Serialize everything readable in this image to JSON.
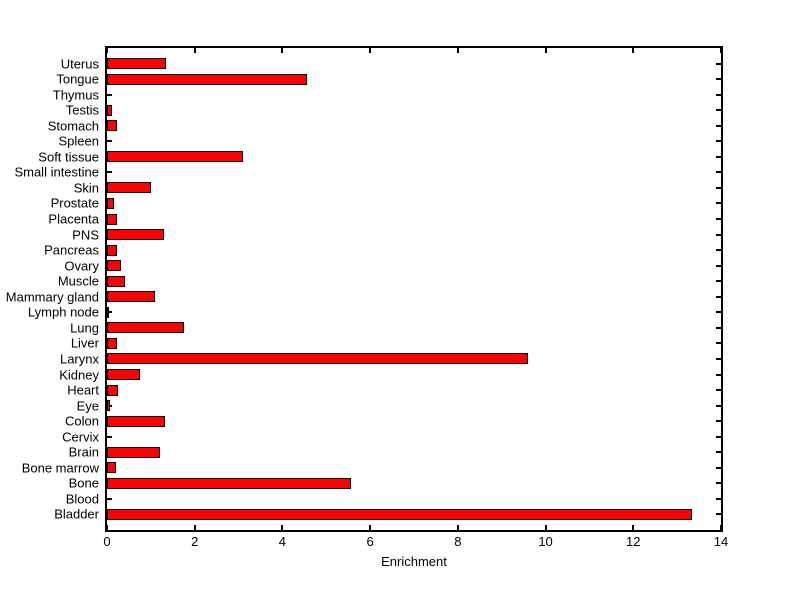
{
  "chart_data": {
    "type": "bar",
    "orientation": "horizontal",
    "title": "",
    "xlabel": "Enrichment",
    "ylabel": "",
    "xlim": [
      0,
      14
    ],
    "xticks": [
      0,
      2,
      4,
      6,
      8,
      10,
      12,
      14
    ],
    "grid": false,
    "legend": false,
    "bar_fill_color": "#ff0000",
    "bar_edge_color": "#000000",
    "axis_color": "#000000",
    "background_color": "#ffffff",
    "categories": [
      "Uterus",
      "Tongue",
      "Thymus",
      "Testis",
      "Stomach",
      "Spleen",
      "Soft tissue",
      "Small intestine",
      "Skin",
      "Prostate",
      "Placenta",
      "PNS",
      "Pancreas",
      "Ovary",
      "Muscle",
      "Mammary gland",
      "Lymph node",
      "Lung",
      "Liver",
      "Larynx",
      "Kidney",
      "Heart",
      "Eye",
      "Colon",
      "Cervix",
      "Brain",
      "Bone marrow",
      "Bone",
      "Blood",
      "Bladder"
    ],
    "values": [
      1.35,
      4.55,
      0,
      0.12,
      0.22,
      0,
      3.1,
      0,
      1.0,
      0.17,
      0.22,
      1.3,
      0.23,
      0.32,
      0.4,
      1.1,
      0.05,
      1.75,
      0.23,
      9.6,
      0.76,
      0.25,
      0.06,
      1.33,
      0,
      1.2,
      0.21,
      5.57,
      0,
      13.33
    ]
  }
}
